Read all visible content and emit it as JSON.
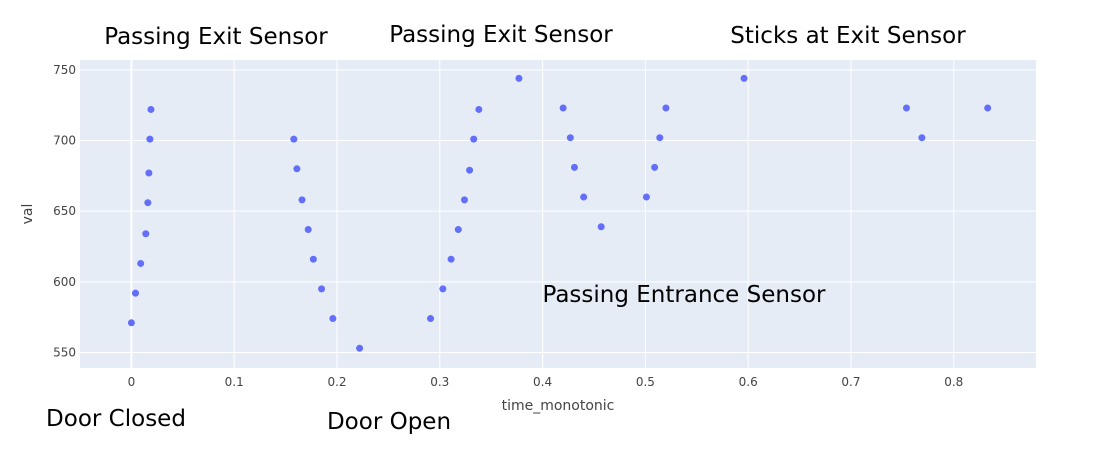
{
  "chart_data": {
    "type": "scatter",
    "xlabel": "time_monotonic",
    "ylabel": "val",
    "xlim": [
      -0.05,
      0.88
    ],
    "ylim": [
      539,
      757
    ],
    "x_ticks": [
      0,
      0.1,
      0.2,
      0.3,
      0.4,
      0.5,
      0.6,
      0.7,
      0.8
    ],
    "x_tick_labels": [
      "0",
      "0.1",
      "0.2",
      "0.3",
      "0.4",
      "0.5",
      "0.6",
      "0.7",
      "0.8"
    ],
    "y_ticks": [
      550,
      600,
      650,
      700,
      750
    ],
    "y_tick_labels": [
      "550",
      "600",
      "650",
      "700",
      "750"
    ],
    "grid": true,
    "point_color": "#636efa",
    "plot_bg": "#e5ecf6",
    "points": [
      {
        "x": 0.0,
        "y": 571
      },
      {
        "x": 0.004,
        "y": 592
      },
      {
        "x": 0.009,
        "y": 613
      },
      {
        "x": 0.014,
        "y": 634
      },
      {
        "x": 0.016,
        "y": 656
      },
      {
        "x": 0.017,
        "y": 677
      },
      {
        "x": 0.018,
        "y": 701
      },
      {
        "x": 0.019,
        "y": 722
      },
      {
        "x": 0.158,
        "y": 701
      },
      {
        "x": 0.161,
        "y": 680
      },
      {
        "x": 0.166,
        "y": 658
      },
      {
        "x": 0.172,
        "y": 637
      },
      {
        "x": 0.177,
        "y": 616
      },
      {
        "x": 0.185,
        "y": 595
      },
      {
        "x": 0.196,
        "y": 574
      },
      {
        "x": 0.222,
        "y": 553
      },
      {
        "x": 0.291,
        "y": 574
      },
      {
        "x": 0.303,
        "y": 595
      },
      {
        "x": 0.311,
        "y": 616
      },
      {
        "x": 0.318,
        "y": 637
      },
      {
        "x": 0.324,
        "y": 658
      },
      {
        "x": 0.329,
        "y": 679
      },
      {
        "x": 0.333,
        "y": 701
      },
      {
        "x": 0.338,
        "y": 722
      },
      {
        "x": 0.377,
        "y": 744
      },
      {
        "x": 0.42,
        "y": 723
      },
      {
        "x": 0.427,
        "y": 702
      },
      {
        "x": 0.431,
        "y": 681
      },
      {
        "x": 0.44,
        "y": 660
      },
      {
        "x": 0.457,
        "y": 639
      },
      {
        "x": 0.501,
        "y": 660
      },
      {
        "x": 0.509,
        "y": 681
      },
      {
        "x": 0.514,
        "y": 702
      },
      {
        "x": 0.52,
        "y": 723
      },
      {
        "x": 0.596,
        "y": 744
      },
      {
        "x": 0.754,
        "y": 723
      },
      {
        "x": 0.769,
        "y": 702
      },
      {
        "x": 0.833,
        "y": 723
      }
    ],
    "annotations": [
      {
        "name": "annotation-passing-exit-sensor-1",
        "text": "Passing Exit Sensor"
      },
      {
        "name": "annotation-passing-exit-sensor-2",
        "text": "Passing Exit Sensor"
      },
      {
        "name": "annotation-sticks-at-exit-sensor",
        "text": "Sticks at Exit Sensor"
      },
      {
        "name": "annotation-passing-entrance-sensor",
        "text": "Passing Entrance Sensor"
      },
      {
        "name": "annotation-door-closed",
        "text": "Door Closed"
      },
      {
        "name": "annotation-door-open",
        "text": "Door Open"
      }
    ]
  }
}
